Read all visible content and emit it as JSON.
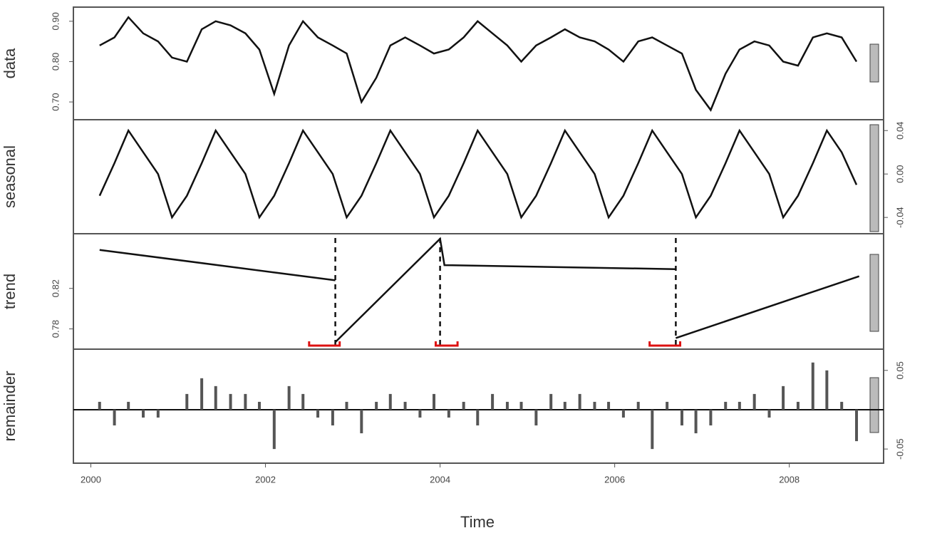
{
  "chart_data": [
    {
      "type": "line",
      "ylabel": "data",
      "axis_side": "left",
      "color": "#111",
      "x": [
        2000.1,
        2000.27,
        2000.43,
        2000.6,
        2000.77,
        2000.93,
        2001.1,
        2001.27,
        2001.43,
        2001.6,
        2001.77,
        2001.93,
        2002.1,
        2002.27,
        2002.43,
        2002.6,
        2002.77,
        2002.93,
        2003.1,
        2003.27,
        2003.43,
        2003.6,
        2003.77,
        2003.93,
        2004.1,
        2004.27,
        2004.43,
        2004.6,
        2004.77,
        2004.93,
        2005.1,
        2005.27,
        2005.43,
        2005.6,
        2005.77,
        2005.93,
        2006.1,
        2006.27,
        2006.43,
        2006.6,
        2006.77,
        2006.93,
        2007.1,
        2007.27,
        2007.43,
        2007.6,
        2007.77,
        2007.93,
        2008.1,
        2008.27,
        2008.43,
        2008.6,
        2008.77
      ],
      "values": [
        0.84,
        0.86,
        0.91,
        0.87,
        0.85,
        0.81,
        0.8,
        0.88,
        0.9,
        0.89,
        0.87,
        0.83,
        0.72,
        0.84,
        0.9,
        0.86,
        0.84,
        0.82,
        0.7,
        0.76,
        0.84,
        0.86,
        0.84,
        0.82,
        0.83,
        0.86,
        0.9,
        0.87,
        0.84,
        0.8,
        0.84,
        0.86,
        0.88,
        0.86,
        0.85,
        0.83,
        0.8,
        0.85,
        0.86,
        0.84,
        0.82,
        0.73,
        0.68,
        0.77,
        0.83,
        0.85,
        0.84,
        0.8,
        0.79,
        0.86,
        0.87,
        0.86,
        0.8
      ],
      "xlim": [
        1999.8,
        2009.08
      ],
      "ylim": [
        0.656,
        0.935
      ],
      "yticks": [
        {
          "value": 0.7,
          "label": "0.70"
        },
        {
          "value": 0.8,
          "label": "0.80"
        },
        {
          "value": 0.9,
          "label": "0.90"
        }
      ]
    },
    {
      "type": "line",
      "ylabel": "seasonal",
      "axis_side": "right",
      "color": "#111",
      "x": [
        2000.1,
        2000.27,
        2000.43,
        2000.6,
        2000.77,
        2000.93,
        2001.1,
        2001.27,
        2001.43,
        2001.6,
        2001.77,
        2001.93,
        2002.1,
        2002.27,
        2002.43,
        2002.6,
        2002.77,
        2002.93,
        2003.1,
        2003.27,
        2003.43,
        2003.6,
        2003.77,
        2003.93,
        2004.1,
        2004.27,
        2004.43,
        2004.6,
        2004.77,
        2004.93,
        2005.1,
        2005.27,
        2005.43,
        2005.6,
        2005.77,
        2005.93,
        2006.1,
        2006.27,
        2006.43,
        2006.6,
        2006.77,
        2006.93,
        2007.1,
        2007.27,
        2007.43,
        2007.6,
        2007.77,
        2007.93,
        2008.1,
        2008.27,
        2008.43,
        2008.6,
        2008.77
      ],
      "values": [
        -0.02,
        0.01,
        0.04,
        0.02,
        0.0,
        -0.04,
        -0.02,
        0.01,
        0.04,
        0.02,
        0.0,
        -0.04,
        -0.02,
        0.01,
        0.04,
        0.02,
        0.0,
        -0.04,
        -0.02,
        0.01,
        0.04,
        0.02,
        0.0,
        -0.04,
        -0.02,
        0.01,
        0.04,
        0.02,
        0.0,
        -0.04,
        -0.02,
        0.01,
        0.04,
        0.02,
        0.0,
        -0.04,
        -0.02,
        0.01,
        0.04,
        0.02,
        0.0,
        -0.04,
        -0.02,
        0.01,
        0.04,
        0.02,
        0.0,
        -0.04,
        -0.02,
        0.01,
        0.04,
        0.02,
        -0.01
      ],
      "xlim": [
        1999.8,
        2009.08
      ],
      "ylim": [
        -0.055,
        0.05
      ],
      "yticks": [
        -0.04,
        {
          "value": 0,
          "label": "0.00"
        },
        0.04
      ]
    },
    {
      "type": "line",
      "ylabel": "trend",
      "axis_side": "left",
      "color": "#111",
      "x": [
        2000.1,
        2002.8,
        2002.8,
        2002.8,
        2004.0,
        2004.05,
        2006.7,
        2006.7,
        2006.7,
        2008.8
      ],
      "values": [
        0.858,
        0.828,
        null,
        0.767,
        0.869,
        0.843,
        0.839,
        null,
        0.771,
        0.832
      ],
      "breakpoints": [
        2002.8,
        2004.0,
        2006.7
      ],
      "ci": [
        [
          2002.5,
          2002.85
        ],
        [
          2003.95,
          2004.2
        ],
        [
          2006.4,
          2006.75
        ]
      ],
      "xlim": [
        1999.8,
        2009.08
      ],
      "ylim": [
        0.76,
        0.874
      ],
      "yticks": [
        0.78,
        0.82
      ]
    },
    {
      "type": "bar",
      "ylabel": "remainder",
      "axis_side": "right",
      "color": "#555",
      "x": [
        2000.1,
        2000.27,
        2000.43,
        2000.6,
        2000.77,
        2000.93,
        2001.1,
        2001.27,
        2001.43,
        2001.6,
        2001.77,
        2001.93,
        2002.1,
        2002.27,
        2002.43,
        2002.6,
        2002.77,
        2002.93,
        2003.1,
        2003.27,
        2003.43,
        2003.6,
        2003.77,
        2003.93,
        2004.1,
        2004.27,
        2004.43,
        2004.6,
        2004.77,
        2004.93,
        2005.1,
        2005.27,
        2005.43,
        2005.6,
        2005.77,
        2005.93,
        2006.1,
        2006.27,
        2006.43,
        2006.6,
        2006.77,
        2006.93,
        2007.1,
        2007.27,
        2007.43,
        2007.6,
        2007.77,
        2007.93,
        2008.1,
        2008.27,
        2008.43,
        2008.6,
        2008.77
      ],
      "values": [
        0.01,
        -0.02,
        0.01,
        -0.01,
        -0.01,
        0.0,
        0.02,
        0.04,
        0.03,
        0.02,
        0.02,
        0.01,
        -0.05,
        0.03,
        0.02,
        -0.01,
        -0.02,
        0.01,
        -0.03,
        0.01,
        0.02,
        0.01,
        -0.01,
        0.02,
        -0.01,
        0.01,
        -0.02,
        0.02,
        0.01,
        0.01,
        -0.02,
        0.02,
        0.01,
        0.02,
        0.01,
        0.01,
        -0.01,
        0.01,
        -0.05,
        0.01,
        -0.02,
        -0.03,
        -0.02,
        0.01,
        0.01,
        0.02,
        -0.01,
        0.03,
        0.01,
        0.06,
        0.05,
        0.01,
        -0.04
      ],
      "xlim": [
        1999.8,
        2009.08
      ],
      "ylim": [
        -0.068,
        0.077
      ],
      "yticks": [
        -0.05,
        0.05
      ],
      "xlabel": "Time",
      "xticks": [
        2000,
        2002,
        2004,
        2006,
        2008
      ]
    }
  ]
}
